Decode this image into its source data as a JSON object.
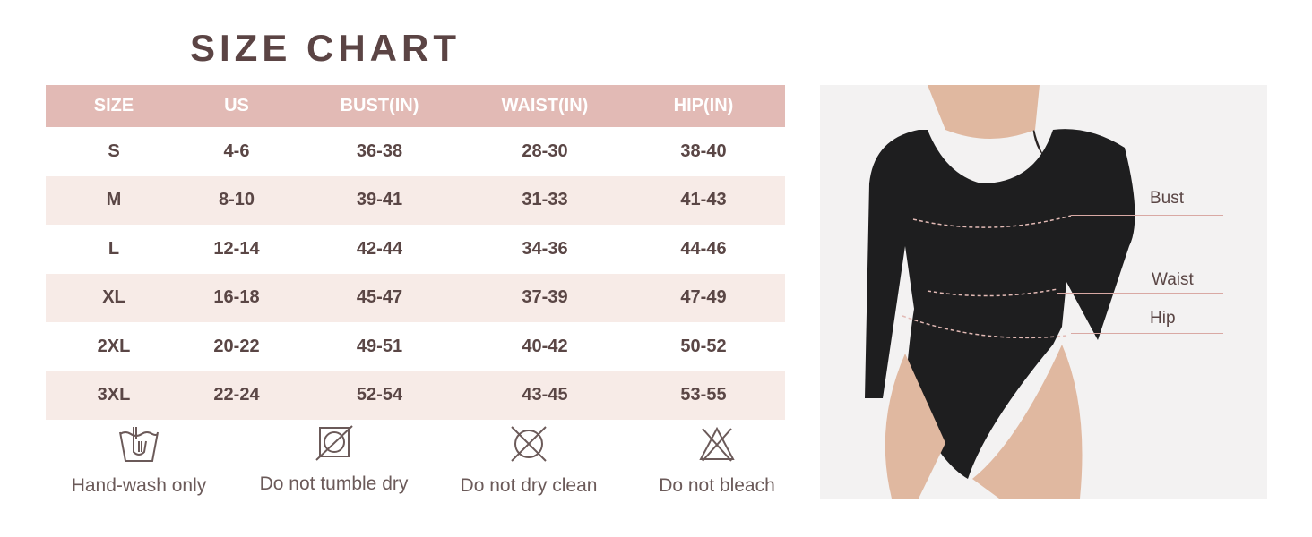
{
  "title": "SIZE CHART",
  "table": {
    "headers": [
      "SIZE",
      "US",
      "BUST(IN)",
      "WAIST(IN)",
      "HIP(IN)"
    ],
    "rows": [
      [
        "S",
        "4-6",
        "36-38",
        "28-30",
        "38-40"
      ],
      [
        "M",
        "8-10",
        "39-41",
        "31-33",
        "41-43"
      ],
      [
        "L",
        "12-14",
        "42-44",
        "34-36",
        "44-46"
      ],
      [
        "XL",
        "16-18",
        "45-47",
        "37-39",
        "47-49"
      ],
      [
        "2XL",
        "20-22",
        "49-51",
        "40-42",
        "50-52"
      ],
      [
        "3XL",
        "22-24",
        "52-54",
        "43-45",
        "53-55"
      ]
    ]
  },
  "care": [
    {
      "icon": "hand-wash-icon",
      "label": "Hand-wash only"
    },
    {
      "icon": "no-tumble-dry-icon",
      "label": "Do not tumble dry"
    },
    {
      "icon": "no-dry-clean-icon",
      "label": "Do not dry clean"
    },
    {
      "icon": "no-bleach-icon",
      "label": "Do not bleach"
    }
  ],
  "measurements": {
    "bust": "Bust",
    "waist": "Waist",
    "hip": "Hip"
  },
  "colors": {
    "header": "#e2bab5",
    "alt_row": "#f7ebe7",
    "text": "#5a4645",
    "title": "#5b4444"
  }
}
